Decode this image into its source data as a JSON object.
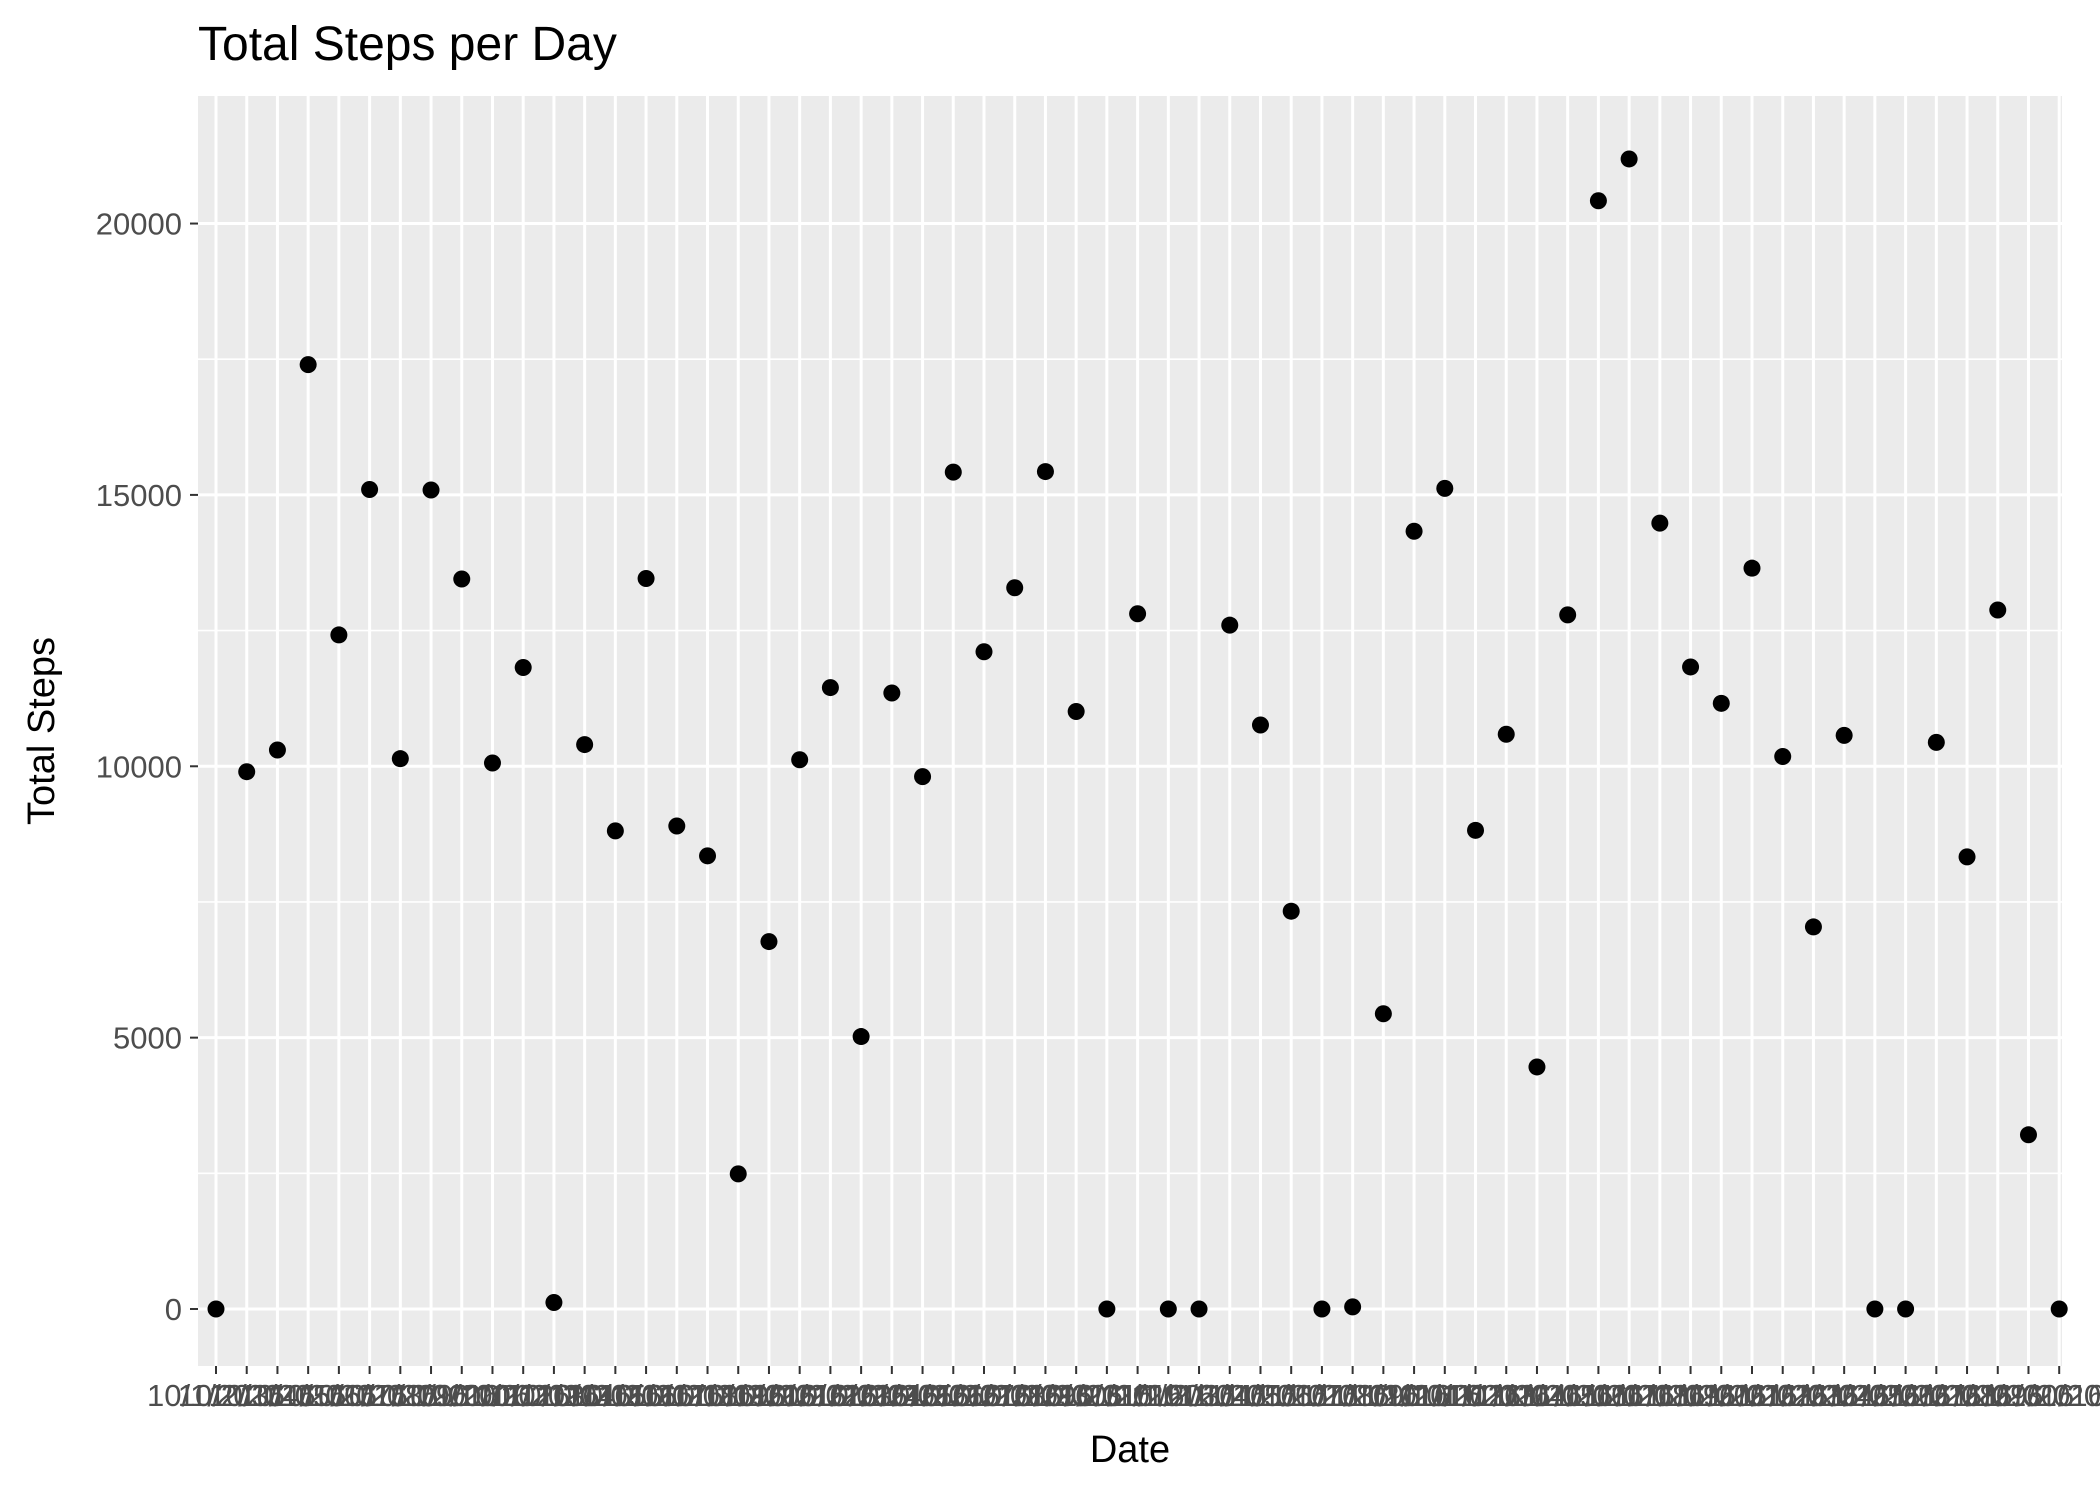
{
  "chart_data": {
    "type": "scatter",
    "title": "Total Steps per Day",
    "xlabel": "Date",
    "ylabel": "Total Steps",
    "x": [
      "10/1/2016",
      "10/2/2016",
      "10/3/2016",
      "10/4/2016",
      "10/5/2016",
      "10/6/2016",
      "10/7/2016",
      "10/8/2016",
      "10/9/2016",
      "10/10/2016",
      "10/11/2016",
      "10/12/2016",
      "10/13/2016",
      "10/14/2016",
      "10/15/2016",
      "10/16/2016",
      "10/17/2016",
      "10/18/2016",
      "10/19/2016",
      "10/20/2016",
      "10/21/2016",
      "10/22/2016",
      "10/23/2016",
      "10/24/2016",
      "10/25/2016",
      "10/26/2016",
      "10/27/2016",
      "10/28/2016",
      "10/29/2016",
      "10/30/2016",
      "10/31/2016",
      "11/1/2016",
      "11/2/2016",
      "11/3/2016",
      "11/4/2016",
      "11/5/2016",
      "11/6/2016",
      "11/7/2016",
      "11/8/2016",
      "11/9/2016",
      "11/10/2016",
      "11/11/2016",
      "11/12/2016",
      "11/13/2016",
      "11/14/2016",
      "11/15/2016",
      "11/16/2016",
      "11/17/2016",
      "11/18/2016",
      "11/19/2016",
      "11/20/2016",
      "11/21/2016",
      "11/22/2016",
      "11/23/2016",
      "11/24/2016",
      "11/25/2016",
      "11/26/2016",
      "11/27/2016",
      "11/28/2016",
      "11/29/2016",
      "11/30/2016"
    ],
    "values": [
      0,
      9900,
      10300,
      17400,
      12420,
      15100,
      10140,
      15090,
      13450,
      10060,
      11820,
      120,
      10400,
      8810,
      13460,
      8900,
      8350,
      2490,
      6770,
      10120,
      11450,
      5020,
      11350,
      9810,
      15420,
      12110,
      13290,
      15430,
      11010,
      0,
      12810,
      0,
      0,
      12600,
      10760,
      7330,
      0,
      40,
      5440,
      14330,
      15120,
      8820,
      10590,
      4460,
      12790,
      20420,
      21190,
      14480,
      11830,
      11160,
      13650,
      10180,
      7040,
      10570,
      0,
      0,
      10440,
      8330,
      12880,
      3210,
      0
    ],
    "xtick_labels": "10/1/2016 … 11/30/2016 (one label per day, overlapping)",
    "ylim": [
      -1050,
      22350
    ],
    "yticks": [
      0,
      5000,
      10000,
      15000,
      20000
    ],
    "grid": true,
    "legend": "none"
  },
  "colors": {
    "panel_background": "#ebebeb",
    "grid_line": "#ffffff",
    "point": "#000000",
    "tick_label": "#4d4d4d",
    "text": "#000000"
  }
}
